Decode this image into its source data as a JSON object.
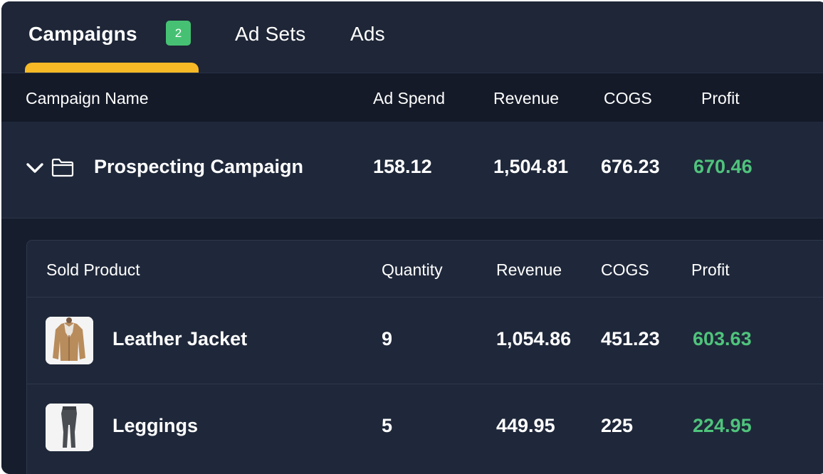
{
  "tabs": [
    {
      "label": "Campaigns",
      "badge": "2"
    },
    {
      "label": "Ad Sets"
    },
    {
      "label": "Ads"
    }
  ],
  "colors": {
    "background": "#1c2435",
    "accent_underline": "#f7b926",
    "badge": "#46c173",
    "profit": "#4fc47c"
  },
  "campaign_table": {
    "columns": [
      "Campaign Name",
      "Ad Spend",
      "Revenue",
      "COGS",
      "Profit"
    ],
    "rows": [
      {
        "icons": [
          "chevron-down-icon",
          "folder-icon"
        ],
        "name": "Prospecting Campaign",
        "ad_spend": "158.12",
        "revenue": "1,504.81",
        "cogs": "676.23",
        "profit": "670.46"
      }
    ]
  },
  "product_table": {
    "columns": [
      "Sold Product",
      "Quantity",
      "Revenue",
      "COGS",
      "Profit"
    ],
    "rows": [
      {
        "image": "jacket-image",
        "name": "Leather Jacket",
        "quantity": "9",
        "revenue": "1,054.86",
        "cogs": "451.23",
        "profit": "603.63"
      },
      {
        "image": "leggings-image",
        "name": "Leggings",
        "quantity": "5",
        "revenue": "449.95",
        "cogs": "225",
        "profit": "224.95"
      }
    ]
  }
}
